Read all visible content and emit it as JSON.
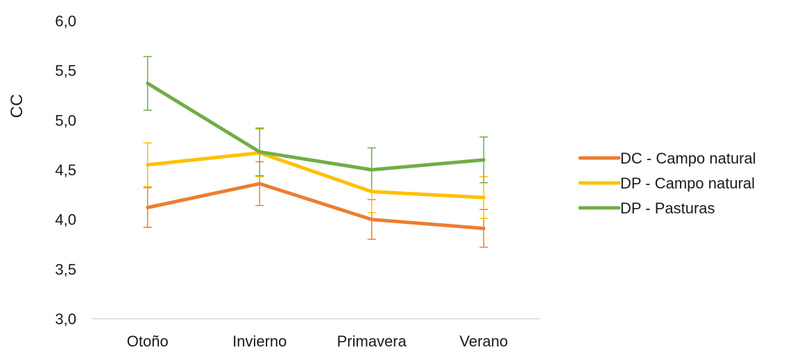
{
  "chart_data": {
    "type": "line",
    "title": "",
    "xlabel": "",
    "ylabel": "CC",
    "categories": [
      "Otoño",
      "Invierno",
      "Primavera",
      "Verano"
    ],
    "ylim": [
      3.0,
      6.0
    ],
    "yticks": [
      "3,0",
      "3,5",
      "4,0",
      "4,5",
      "5,0",
      "5,5",
      "6,0"
    ],
    "ytick_values": [
      3.0,
      3.5,
      4.0,
      4.5,
      5.0,
      5.5,
      6.0
    ],
    "grid": false,
    "legend_position": "right",
    "series": [
      {
        "name": "DC - Campo natural",
        "color": "#ED7D31",
        "values": [
          4.12,
          4.36,
          4.0,
          3.91
        ],
        "error": [
          0.2,
          0.22,
          0.2,
          0.19
        ]
      },
      {
        "name": "DP - Campo natural",
        "color": "#FFC000",
        "values": [
          4.55,
          4.67,
          4.28,
          4.22
        ],
        "error": [
          0.22,
          0.24,
          0.21,
          0.21
        ]
      },
      {
        "name": "DP - Pasturas",
        "color": "#70AD47",
        "values": [
          5.37,
          4.68,
          4.5,
          4.6
        ],
        "error": [
          0.27,
          0.24,
          0.22,
          0.23
        ]
      }
    ]
  }
}
